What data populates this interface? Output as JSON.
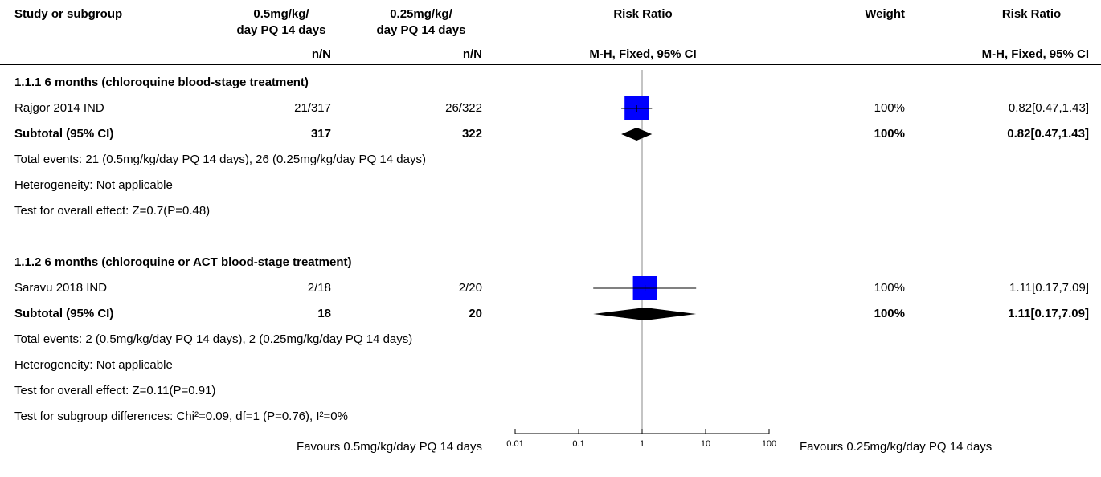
{
  "chart_data": {
    "type": "forest",
    "headers": {
      "study": "Study or subgroup",
      "exp": "0.5mg/kg/\nday PQ 14 days",
      "ctrl": "0.25mg/kg/\nday PQ 14 days",
      "plot": "Risk Ratio",
      "weight": "Weight",
      "ci": "Risk Ratio"
    },
    "subheaders": {
      "exp": "n/N",
      "ctrl": "n/N",
      "plot": "M-H, Fixed, 95% CI",
      "ci": "M-H, Fixed, 95% CI"
    },
    "groups": [
      {
        "title": "1.1.1 6 months (chloroquine blood-stage treatment)",
        "studies": [
          {
            "name": "Rajgor 2014 IND",
            "exp": "21/317",
            "ctrl": "26/322",
            "rr": 0.82,
            "lo": 0.47,
            "hi": 1.43,
            "weight": 100,
            "weight_label": "100%",
            "ci_label": "0.82[0.47,1.43]"
          }
        ],
        "subtotal": {
          "name": "Subtotal (95% CI)",
          "exp": 317,
          "ctrl": 322,
          "rr": 0.82,
          "lo": 0.47,
          "hi": 1.43,
          "weight": 100,
          "weight_label": "100%",
          "ci_label": "0.82[0.47,1.43]"
        },
        "notes": [
          "Total events: 21 (0.5mg/kg/day PQ 14 days), 26 (0.25mg/kg/day PQ 14 days)",
          "Heterogeneity: Not applicable",
          "Test for overall effect: Z=0.7(P=0.48)"
        ]
      },
      {
        "title": "1.1.2 6 months (chloroquine or ACT blood-stage treatment)",
        "studies": [
          {
            "name": "Saravu 2018 IND",
            "exp": "2/18",
            "ctrl": "2/20",
            "rr": 1.11,
            "lo": 0.17,
            "hi": 7.09,
            "weight": 100,
            "weight_label": "100%",
            "ci_label": "1.11[0.17,7.09]"
          }
        ],
        "subtotal": {
          "name": "Subtotal (95% CI)",
          "exp": 18,
          "ctrl": 20,
          "rr": 1.11,
          "lo": 0.17,
          "hi": 7.09,
          "weight": 100,
          "weight_label": "100%",
          "ci_label": "1.11[0.17,7.09]"
        },
        "notes": [
          "Total events: 2 (0.5mg/kg/day PQ 14 days), 2 (0.25mg/kg/day PQ 14 days)",
          "Heterogeneity: Not applicable",
          "Test for overall effect: Z=0.11(P=0.91)"
        ]
      }
    ],
    "footnote": "Test for subgroup differences: Chi²=0.09, df=1 (P=0.76), I²=0%",
    "xscale": "log",
    "xlim": [
      0.01,
      100
    ],
    "xticks": [
      0.01,
      0.1,
      1,
      10,
      100
    ],
    "ref_line": 1,
    "square_color": "#0000ff",
    "favours_left": "Favours 0.5mg/kg/day PQ 14 days",
    "favours_right": "Favours 0.25mg/kg/day PQ 14 days"
  }
}
